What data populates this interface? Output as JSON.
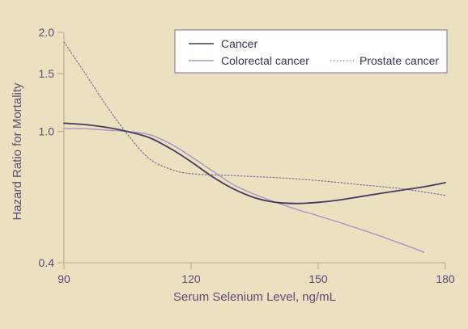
{
  "chart_data": {
    "type": "line",
    "title": "",
    "xlabel": "Serum Selenium Level, ng/mL",
    "ylabel": "Hazard Ratio for Mortality",
    "xlim": [
      90,
      180
    ],
    "ylim": [
      0.4,
      2.0
    ],
    "yscale": "log",
    "xticks": [
      90,
      120,
      150,
      180
    ],
    "xtick_labels": [
      "90",
      "120",
      "150",
      "180"
    ],
    "yticks": [
      0.4,
      1.0,
      1.5,
      2.0
    ],
    "ytick_labels": [
      "0.4",
      "1.0",
      "1.5",
      "2.0"
    ],
    "grid": false,
    "legend_position": "top-right",
    "series": [
      {
        "name": "Cancer",
        "color": "#453a63",
        "style": "solid",
        "x": [
          90,
          95,
          100,
          105,
          110,
          115,
          120,
          125,
          130,
          135,
          140,
          145,
          150,
          155,
          160,
          165,
          170,
          175,
          180
        ],
        "y": [
          1.06,
          1.05,
          1.03,
          1.0,
          0.96,
          0.89,
          0.81,
          0.73,
          0.67,
          0.63,
          0.61,
          0.605,
          0.61,
          0.62,
          0.635,
          0.65,
          0.665,
          0.68,
          0.7
        ]
      },
      {
        "name": "Colorectal cancer",
        "color": "#a897c4",
        "style": "solid",
        "x": [
          90,
          95,
          100,
          105,
          110,
          115,
          120,
          125,
          130,
          135,
          140,
          145,
          150,
          155,
          160,
          165,
          170,
          175
        ],
        "y": [
          1.02,
          1.02,
          1.01,
          1.0,
          0.98,
          0.92,
          0.84,
          0.76,
          0.69,
          0.645,
          0.61,
          0.58,
          0.555,
          0.53,
          0.505,
          0.48,
          0.455,
          0.43
        ]
      },
      {
        "name": "Prostate cancer",
        "color": "#7d6f98",
        "style": "dotted",
        "x": [
          90,
          95,
          100,
          105,
          110,
          115,
          120,
          130,
          140,
          150,
          160,
          170,
          180
        ],
        "y": [
          1.87,
          1.5,
          1.2,
          0.98,
          0.83,
          0.77,
          0.745,
          0.735,
          0.725,
          0.71,
          0.69,
          0.67,
          0.64
        ]
      }
    ]
  }
}
